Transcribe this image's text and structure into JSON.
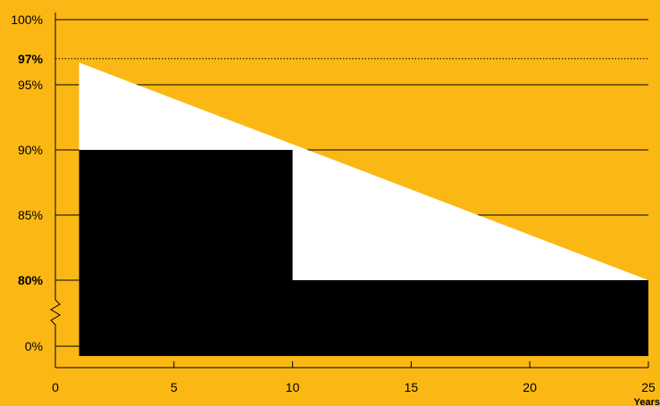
{
  "chart_data": {
    "type": "area",
    "title": "",
    "xlabel": "Years",
    "ylabel": "",
    "xlim": [
      0,
      25
    ],
    "x_ticks": [
      0,
      5,
      10,
      15,
      20,
      25
    ],
    "y_ticks": [
      {
        "label": "100%",
        "value": 100,
        "bold": false
      },
      {
        "label": "97%",
        "value": 97,
        "bold": true
      },
      {
        "label": "95%",
        "value": 95,
        "bold": false
      },
      {
        "label": "90%",
        "value": 90,
        "bold": false
      },
      {
        "label": "85%",
        "value": 85,
        "bold": false
      },
      {
        "label": "80%",
        "value": 80,
        "bold": true
      },
      {
        "label": "0%",
        "value": 0,
        "bold": false
      }
    ],
    "axis_break": "between 80% and 0%",
    "series": [
      {
        "role": "linear-performance-guarantee",
        "x": [
          1,
          25
        ],
        "y": [
          96.7,
          80
        ],
        "color": "#FFFFFF"
      },
      {
        "role": "step-guarantee",
        "x": [
          1,
          10,
          10,
          25
        ],
        "y": [
          90,
          90,
          80,
          80
        ],
        "color": "#000000"
      }
    ],
    "reference_lines": [
      {
        "value": 97,
        "style": "dotted"
      }
    ],
    "grid": true,
    "background": "#FBB814"
  }
}
